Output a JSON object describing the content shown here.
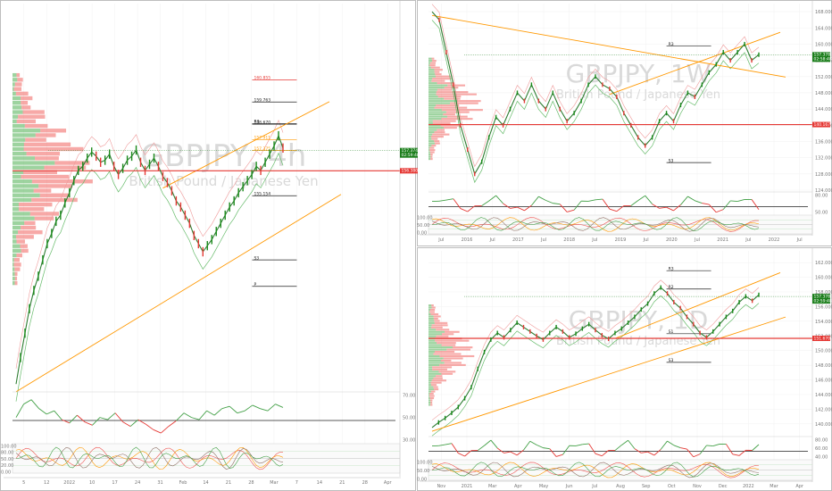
{
  "chart_data": [
    {
      "type": "line",
      "symbol": "GBPJPY",
      "interval": "4h",
      "watermark_title": "GBPJPY, 4h",
      "watermark_subtitle": "British Pound / Japanese Yen",
      "ylim": [
        145.6,
        164.6
      ],
      "x_ticks": [
        "5",
        "12",
        "2022",
        "10",
        "17",
        "24",
        "31",
        "Feb",
        "14",
        "21",
        "28",
        "Mar",
        "7",
        "14",
        "21",
        "28",
        "Apr"
      ],
      "close": [
        145.9,
        147.2,
        148.4,
        149.6,
        150.5,
        151.2,
        152.0,
        152.8,
        153.3,
        153.9,
        154.2,
        154.8,
        155.3,
        155.9,
        156.4,
        156.6,
        157.0,
        157.3,
        157.1,
        156.8,
        156.9,
        157.2,
        156.6,
        156.2,
        156.5,
        156.9,
        157.1,
        157.4,
        156.8,
        156.4,
        156.7,
        157.0,
        156.6,
        156.1,
        155.8,
        155.4,
        154.9,
        154.6,
        154.2,
        153.8,
        153.2,
        152.8,
        152.4,
        152.7,
        153.0,
        153.4,
        153.8,
        154.2,
        154.6,
        154.9,
        155.3,
        155.6,
        155.9,
        156.2,
        156.6,
        156.4,
        156.8,
        157.2,
        157.6,
        158.1,
        157.5
      ],
      "levels": [
        {
          "label": "160.855",
          "value": 160.855,
          "color": "#e53935"
        },
        {
          "label": "159.763",
          "value": 159.763,
          "color": "#212121"
        },
        {
          "label": "R3",
          "value": 158.7,
          "color": "#212121"
        },
        {
          "label": "158.670",
          "value": 158.67,
          "color": "#212121"
        },
        {
          "label": "157.911",
          "value": 157.911,
          "color": "#ff9800"
        },
        {
          "label": "157.375",
          "value": 157.375,
          "color": "#ff9800"
        },
        {
          "label": "155.154",
          "value": 155.154,
          "color": "#212121"
        },
        {
          "label": "S3",
          "value": 152.0,
          "color": "#212121"
        },
        {
          "label": "P",
          "value": 150.7,
          "color": "#212121"
        }
      ],
      "price_tags": [
        {
          "label": "157.374",
          "sub": "02:59:48",
          "value": 157.374,
          "color": "#1b7e1b"
        },
        {
          "label": "156.380",
          "value": 156.38,
          "color": "#e53935"
        }
      ],
      "oscillator": [
        52,
        64,
        68,
        60,
        55,
        58,
        50,
        47,
        54,
        48,
        45,
        52,
        50,
        56,
        48,
        44,
        50,
        46,
        41,
        38,
        44,
        49,
        56,
        52,
        50,
        58,
        54,
        60,
        62,
        56,
        58,
        63,
        60,
        58,
        64,
        61
      ],
      "oscillator_axis": [
        "70.00",
        "50.00",
        "30.00"
      ],
      "stochastic_axis": [
        "100.00",
        "80.00",
        "50.00",
        "20.00",
        "0.00"
      ]
    },
    {
      "type": "line",
      "symbol": "GBPJPY",
      "interval": "1W",
      "watermark_title": "GBPJPY, 1W",
      "watermark_subtitle": "British Pound / Japanese Yen",
      "ylim": [
        124.0,
        170.0
      ],
      "y_ticks": [
        "168.000",
        "164.000",
        "160.000",
        "156.000",
        "152.000",
        "148.000",
        "144.000",
        "140.000",
        "136.000",
        "132.000",
        "128.000",
        "124.000"
      ],
      "x_ticks": [
        "Jul",
        "2016",
        "Jul",
        "2017",
        "Jul",
        "2018",
        "Jul",
        "2019",
        "Jul",
        "2020",
        "Jul",
        "2021",
        "Jul",
        "2022",
        "Jul"
      ],
      "close": [
        168,
        166,
        158,
        150,
        140,
        134,
        128,
        131,
        137,
        142,
        140,
        144,
        148,
        146,
        150,
        146,
        144,
        148,
        144,
        141,
        143,
        146,
        150,
        152,
        150,
        149,
        147,
        143,
        140,
        137,
        135,
        137,
        141,
        143,
        141,
        145,
        148,
        147,
        150,
        153,
        155,
        158,
        156,
        158,
        160,
        156,
        157.4
      ],
      "levels": [
        {
          "label": "R3",
          "value": 159.5,
          "color": "#212121"
        },
        {
          "label": "S3",
          "value": 130.8,
          "color": "#212121"
        }
      ],
      "price_tags": [
        {
          "label": "157.378",
          "sub": "02:58:48",
          "value": 157.378,
          "color": "#1b7e1b"
        },
        {
          "label": "140.167",
          "value": 140.167,
          "color": "#e53935"
        }
      ],
      "oscillator_axis": [
        "80.00",
        "50.00"
      ],
      "stochastic_axis": [
        "100.00",
        "50.00",
        "0.00"
      ]
    },
    {
      "type": "line",
      "symbol": "GBPJPY",
      "interval": "1D",
      "watermark_title": "GBPJPY, 1D",
      "watermark_subtitle": "British Pound / Japanese Yen",
      "ylim": [
        138.4,
        163.6
      ],
      "y_ticks": [
        "162.000",
        "160.000",
        "158.000",
        "156.000",
        "154.000",
        "152.000",
        "150.000",
        "148.000",
        "146.000",
        "144.000",
        "142.000",
        "140.000"
      ],
      "x_ticks": [
        "Nov",
        "2021",
        "Mar",
        "Apr",
        "May",
        "Jun",
        "Jul",
        "Aug",
        "Sep",
        "Oct",
        "Nov",
        "Dec",
        "2022",
        "Mar",
        "Apr"
      ],
      "close": [
        139.5,
        140.2,
        140.8,
        141.5,
        142.3,
        143.5,
        145,
        147.5,
        149.8,
        151.5,
        152.4,
        151.8,
        152.8,
        153.8,
        153.2,
        152.6,
        152,
        151.5,
        152.4,
        153.2,
        152.6,
        151.8,
        152.3,
        153,
        153.6,
        152.8,
        152.1,
        151.6,
        152.4,
        153,
        153.8,
        154.6,
        155.6,
        156.4,
        157.8,
        158.6,
        157.8,
        156.6,
        155.8,
        154.6,
        153.6,
        152.4,
        151.8,
        152.6,
        153.6,
        154.6,
        155.4,
        156.6,
        157.4,
        156.8,
        157.6
      ],
      "levels": [
        {
          "label": "R3",
          "value": 160.9,
          "color": "#212121"
        },
        {
          "label": "R2",
          "value": 158.4,
          "color": "#212121"
        },
        {
          "label": "S1",
          "value": 152.3,
          "color": "#212121"
        },
        {
          "label": "S3",
          "value": 148.4,
          "color": "#212121"
        }
      ],
      "price_tags": [
        {
          "label": "157.378",
          "sub": "02:59:48",
          "value": 157.378,
          "color": "#1b7e1b"
        },
        {
          "label": "151.670",
          "value": 151.67,
          "color": "#e53935"
        }
      ],
      "oscillator_axis": [
        "80.00",
        "60.00",
        "40.00"
      ],
      "stochastic_axis": [
        "100.00",
        "50.00",
        "0.00"
      ]
    }
  ]
}
